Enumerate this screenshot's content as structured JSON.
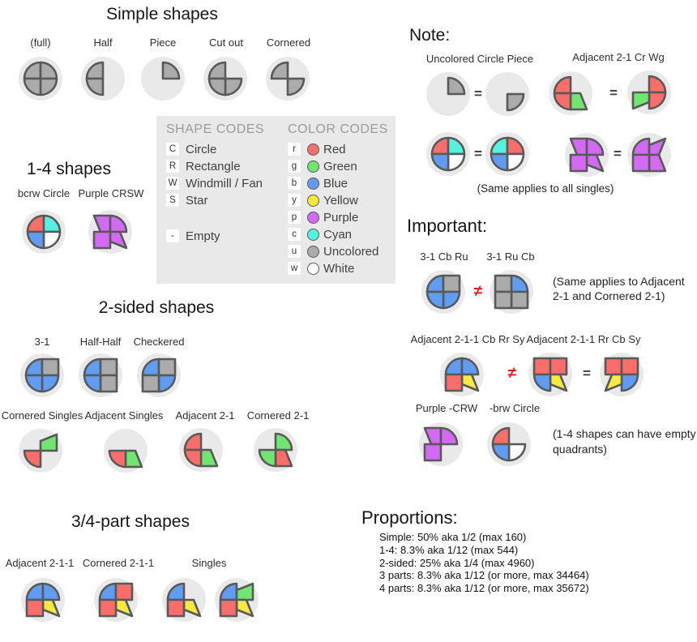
{
  "palette": {
    "r": "#f96e6a",
    "g": "#70e670",
    "b": "#5f9cf2",
    "y": "#f8e93e",
    "p": "#d46af3",
    "c": "#55f2e0",
    "u": "#ababab",
    "w": "#ffffff"
  },
  "style": {
    "outline": "#595959",
    "disc": "#e9e9e9",
    "neq_color": "#e01f1f",
    "eq_color": "#3a3a3a"
  },
  "connectors": {
    "eq": "=",
    "neq": "≠"
  },
  "sections": {
    "simple": {
      "title": "Simple shapes",
      "items": [
        {
          "label": "(full)",
          "shape": {
            "tl": "C:u",
            "tr": "C:u",
            "bl": "C:u",
            "br": "C:u"
          }
        },
        {
          "label": "Half",
          "shape": {
            "tl": "C:u",
            "bl": "C:u"
          }
        },
        {
          "label": "Piece",
          "shape": {
            "tr": "C:u"
          }
        },
        {
          "label": "Cut out",
          "shape": {
            "tl": "C:u",
            "bl": "C:u",
            "br": "C:u"
          }
        },
        {
          "label": "Cornered",
          "shape": {
            "tl": "C:u",
            "br": "C:u"
          }
        }
      ]
    },
    "one_four": {
      "title": "1-4 shapes",
      "items": [
        {
          "label": "bcrw Circle",
          "shape": {
            "tl": "C:r",
            "tr": "C:c",
            "bl": "C:b",
            "br": "C:w"
          }
        },
        {
          "label": "Purple CRSW",
          "shape": {
            "tl": "W:p",
            "tr": "C:p",
            "bl": "R:p",
            "br": "S:p"
          }
        }
      ]
    },
    "two_sided": {
      "title": "2-sided shapes",
      "row1": [
        {
          "label": "3-1",
          "shape": {
            "tl": "C:b",
            "tr": "R:u",
            "bl": "C:b",
            "br": "C:b"
          }
        },
        {
          "label": "Half-Half",
          "shape": {
            "tl": "C:b",
            "tr": "R:u",
            "bl": "C:b",
            "br": "R:u"
          }
        },
        {
          "label": "Checkered",
          "shape": {
            "tl": "C:b",
            "tr": "R:u",
            "bl": "R:u",
            "br": "C:b"
          }
        }
      ],
      "row2": [
        {
          "label": "Cornered Singles",
          "shape": {
            "tr": "W:g",
            "bl": "C:r"
          }
        },
        {
          "label": "Adjacent Singles",
          "shape": {
            "bl": "C:r",
            "br": "W:g"
          }
        },
        {
          "label": "Adjacent 2-1",
          "shape": {
            "tl": "C:r",
            "bl": "C:r",
            "br": "W:g"
          }
        },
        {
          "label": "Cornered 2-1",
          "shape": {
            "tr": "C:g",
            "bl": "C:g",
            "br": "W:r"
          }
        }
      ]
    },
    "three_four": {
      "title": "3/4-part shapes",
      "labels": [
        {
          "label": "Adjacent 2-1-1"
        },
        {
          "label": "Cornered 2-1-1"
        },
        {
          "label": "Singles"
        }
      ],
      "shapes": [
        {
          "shape": {
            "tl": "C:b",
            "tr": "C:b",
            "bl": "R:r",
            "br": "S:y"
          }
        },
        {
          "shape": {
            "tl": "C:b",
            "tr": "R:r",
            "bl": "R:r",
            "br": "S:y"
          }
        },
        {
          "shape": {
            "tl": "C:b",
            "bl": "R:r",
            "br": "S:y"
          }
        },
        {
          "shape": {
            "tl": "C:b",
            "tr": "W:g",
            "bl": "R:r",
            "br": "S:y"
          }
        }
      ]
    },
    "note": {
      "title": "Note:",
      "pair1_label": "Uncolored Circle Piece",
      "pair2_label": "Adjacent 2-1 Cr Wg",
      "caption": "(Same applies to all singles)",
      "shapes": {
        "piece_a": {
          "tr": "C:u"
        },
        "piece_b": {
          "br": "C:u"
        },
        "adj_a": {
          "tl": "C:r",
          "bl": "C:r",
          "br": "W:g"
        },
        "adj_b": {
          "tr": "C:r",
          "br": "C:r",
          "bl": "W:g"
        },
        "bcrw_a": {
          "tl": "C:r",
          "tr": "C:c",
          "bl": "C:b",
          "br": "C:w"
        },
        "bcrw_b": {
          "tl": "C:c",
          "tr": "C:r",
          "bl": "C:b",
          "br": "C:w"
        },
        "crsw_a": {
          "tl": "W:p",
          "tr": "C:p",
          "bl": "R:p",
          "br": "S:p"
        },
        "crsw_b": {
          "tl": "C:p",
          "tr": "S:p",
          "bl": "R:p",
          "br": "W:p"
        }
      }
    },
    "important": {
      "title": "Important:",
      "row1": {
        "label_a": "3-1 Cb Ru",
        "label_b": "3-1 Ru Cb",
        "shape_a": {
          "tl": "C:b",
          "tr": "R:u",
          "bl": "C:b",
          "br": "C:b"
        },
        "shape_b": {
          "tl": "R:u",
          "tr": "C:b",
          "bl": "R:u",
          "br": "R:u"
        },
        "note_line1": "(Same applies to Adjacent",
        "note_line2": "2-1 and Cornered 2-1)"
      },
      "row2": {
        "label_a": "Adjacent 2-1-1 Cb Rr Sy",
        "label_b": "Adjacent 2-1-1 Rr Cb Sy",
        "shape_a": {
          "tl": "C:b",
          "tr": "C:b",
          "bl": "R:r",
          "br": "S:y"
        },
        "shape_b": {
          "tl": "R:r",
          "tr": "R:r",
          "bl": "C:b",
          "br": "S:y"
        },
        "shape_c": {
          "tl": "R:r",
          "tr": "R:r",
          "bl": "S:y",
          "br": "C:b"
        }
      },
      "row3": {
        "label_a": "Purple -CRW",
        "label_b": "-brw Circle",
        "shape_a": {
          "tl": "W:p",
          "tr": "C:p",
          "bl": "R:p"
        },
        "shape_b": {
          "tl": "C:r",
          "bl": "C:b",
          "br": "C:w"
        },
        "note_line1": "(1-4 shapes can have empty",
        "note_line2": "quadrants)"
      }
    },
    "proportions": {
      "title": "Proportions:",
      "lines": [
        "Simple: 50% aka 1/2 (max 160)",
        "1-4: 8.3% aka 1/12 (max 544)",
        "2-sided: 25% aka 1/4 (max 4960)",
        "3 parts: 8.3% aka 1/12 (or more, max 34464)",
        "4 parts: 8.3% aka 1/12 (or more, max 35672)"
      ]
    }
  },
  "legend": {
    "shape_codes": {
      "header": "SHAPE CODES",
      "items": [
        {
          "code": "C",
          "label": "Circle"
        },
        {
          "code": "R",
          "label": "Rectangle"
        },
        {
          "code": "W",
          "label": "Windmill / Fan"
        },
        {
          "code": "S",
          "label": "Star"
        },
        {
          "code": "-",
          "label": "Empty"
        }
      ]
    },
    "color_codes": {
      "header": "COLOR CODES",
      "items": [
        {
          "code": "r",
          "label": "Red"
        },
        {
          "code": "g",
          "label": "Green"
        },
        {
          "code": "b",
          "label": "Blue"
        },
        {
          "code": "y",
          "label": "Yellow"
        },
        {
          "code": "p",
          "label": "Purple"
        },
        {
          "code": "c",
          "label": "Cyan"
        },
        {
          "code": "u",
          "label": "Uncolored"
        },
        {
          "code": "w",
          "label": "White"
        }
      ]
    }
  }
}
